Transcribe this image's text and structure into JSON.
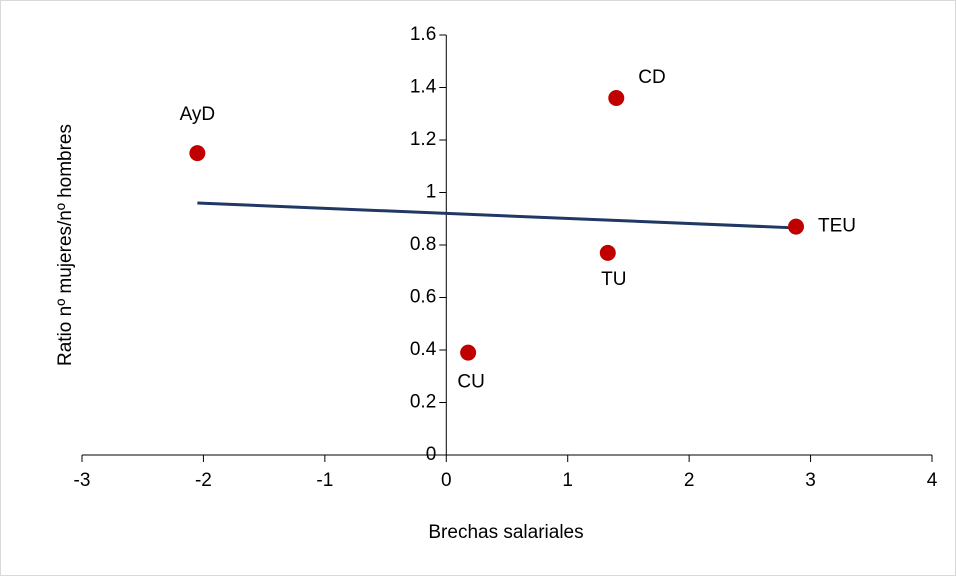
{
  "chart_data": {
    "type": "scatter",
    "x_label": "Brechas salariales",
    "y_label": "Ratio nº mujeres/nº hombres",
    "labels": [
      "AyD",
      "CD",
      "TEU",
      "TU",
      "CU"
    ],
    "x": [
      -2.05,
      1.4,
      2.88,
      1.33,
      0.18
    ],
    "y": [
      1.15,
      1.36,
      0.87,
      0.77,
      0.39
    ],
    "color": "#c00000",
    "trendline": {
      "x": [
        -2.05,
        2.88
      ],
      "y": [
        0.96,
        0.865
      ],
      "color": "#1f3864"
    },
    "xlim": [
      -3,
      4
    ],
    "ylim": [
      0,
      1.6
    ],
    "xticks": [
      -3,
      -2,
      -1,
      0,
      1,
      2,
      3,
      4
    ],
    "yticks": [
      0,
      0.2,
      0.4,
      0.6,
      0.8,
      1,
      1.2,
      1.4,
      1.6
    ]
  }
}
